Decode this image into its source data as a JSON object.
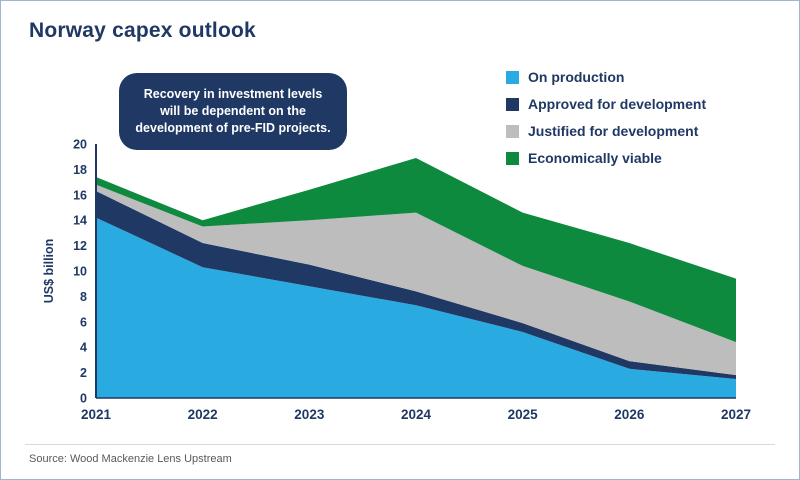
{
  "page": {
    "title": "Norway capex outlook",
    "callout": "Recovery in investment levels will be dependent on the development of pre-FID projects.",
    "source": "Source: Wood Mackenzie Lens Upstream",
    "colors": {
      "title": "#1F3864",
      "axis": "#1F3864",
      "callout_bg": "#1F3864",
      "callout_text": "#FFFFFF",
      "source_text": "#595959",
      "frame_border": "#9FB6CC"
    }
  },
  "chart_data": {
    "type": "area",
    "stacked": true,
    "title": "Norway capex outlook",
    "x": [
      2021,
      2022,
      2023,
      2024,
      2025,
      2026,
      2027
    ],
    "series": [
      {
        "name": "On production",
        "color": "#29ABE2",
        "values": [
          14.2,
          10.3,
          8.8,
          7.3,
          5.2,
          2.3,
          1.5
        ]
      },
      {
        "name": "Approved for development",
        "color": "#1F3864",
        "values": [
          2.1,
          1.9,
          1.7,
          1.1,
          0.7,
          0.6,
          0.3
        ]
      },
      {
        "name": "Justified for development",
        "color": "#BDBDBD",
        "values": [
          0.5,
          1.3,
          3.5,
          6.2,
          4.5,
          4.7,
          2.6
        ]
      },
      {
        "name": "Economically viable",
        "color": "#0E8A3E",
        "values": [
          0.6,
          0.5,
          2.4,
          4.3,
          4.2,
          4.6,
          5.0
        ]
      }
    ],
    "xlabel": "",
    "ylabel": "US$ billion",
    "ylim": [
      0,
      20
    ],
    "ytick_step": 2,
    "grid": false,
    "legend_position": "top-right"
  }
}
